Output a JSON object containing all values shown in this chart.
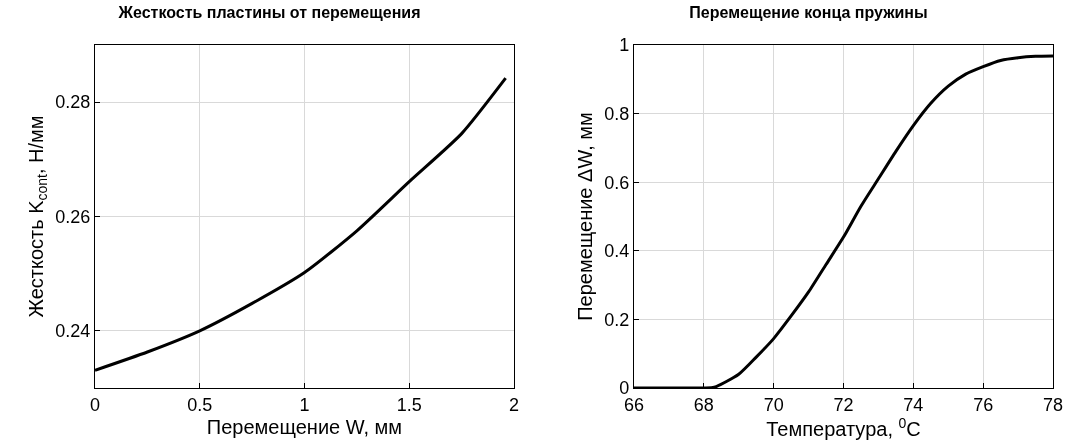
{
  "chart_data": [
    {
      "type": "line",
      "title": "Жесткость пластины от перемещения",
      "xlabel": "Перемещение W, мм",
      "ylabel": "Жесткость K$_{cont}$, Н/мм",
      "x": [
        0,
        0.25,
        0.5,
        0.75,
        1,
        1.25,
        1.5,
        1.75,
        1.96
      ],
      "series": [
        {
          "color": "#000000",
          "values": [
            0.2331,
            0.2363,
            0.24,
            0.2448,
            0.2502,
            0.2575,
            0.2661,
            0.2745,
            0.2842
          ]
        }
      ],
      "xlim": [
        0,
        2
      ],
      "xticks": [
        0,
        0.5,
        1,
        1.5,
        2
      ],
      "ylim": [
        0.23,
        0.29
      ],
      "yticks": [
        0.24,
        0.26,
        0.28
      ],
      "grid": true,
      "marker": "none",
      "line_style": "solid"
    },
    {
      "type": "line",
      "title": "Перемещение конца пружины",
      "xlabel": "Температура, $^{0}$C",
      "ylabel": "Перемещение ΔW, мм",
      "x": [
        66,
        67,
        68,
        68.3,
        69,
        69.5,
        70,
        70.5,
        71,
        71.5,
        72,
        72.5,
        73,
        73.5,
        74,
        74.5,
        75,
        75.5,
        76,
        76.5,
        77,
        77.5,
        78
      ],
      "series": [
        {
          "color": "#000000",
          "values": [
            0,
            0,
            0,
            0.002,
            0.04,
            0.09,
            0.144,
            0.21,
            0.28,
            0.36,
            0.44,
            0.53,
            0.61,
            0.69,
            0.765,
            0.83,
            0.88,
            0.915,
            0.937,
            0.955,
            0.963,
            0.967,
            0.968
          ]
        }
      ],
      "xlim": [
        66,
        78
      ],
      "xticks": [
        66,
        68,
        70,
        72,
        74,
        76,
        78
      ],
      "ylim": [
        0,
        1
      ],
      "yticks": [
        0,
        0.2,
        0.4,
        0.6,
        0.8,
        1
      ],
      "grid": true,
      "marker": "none",
      "line_style": "solid"
    }
  ]
}
